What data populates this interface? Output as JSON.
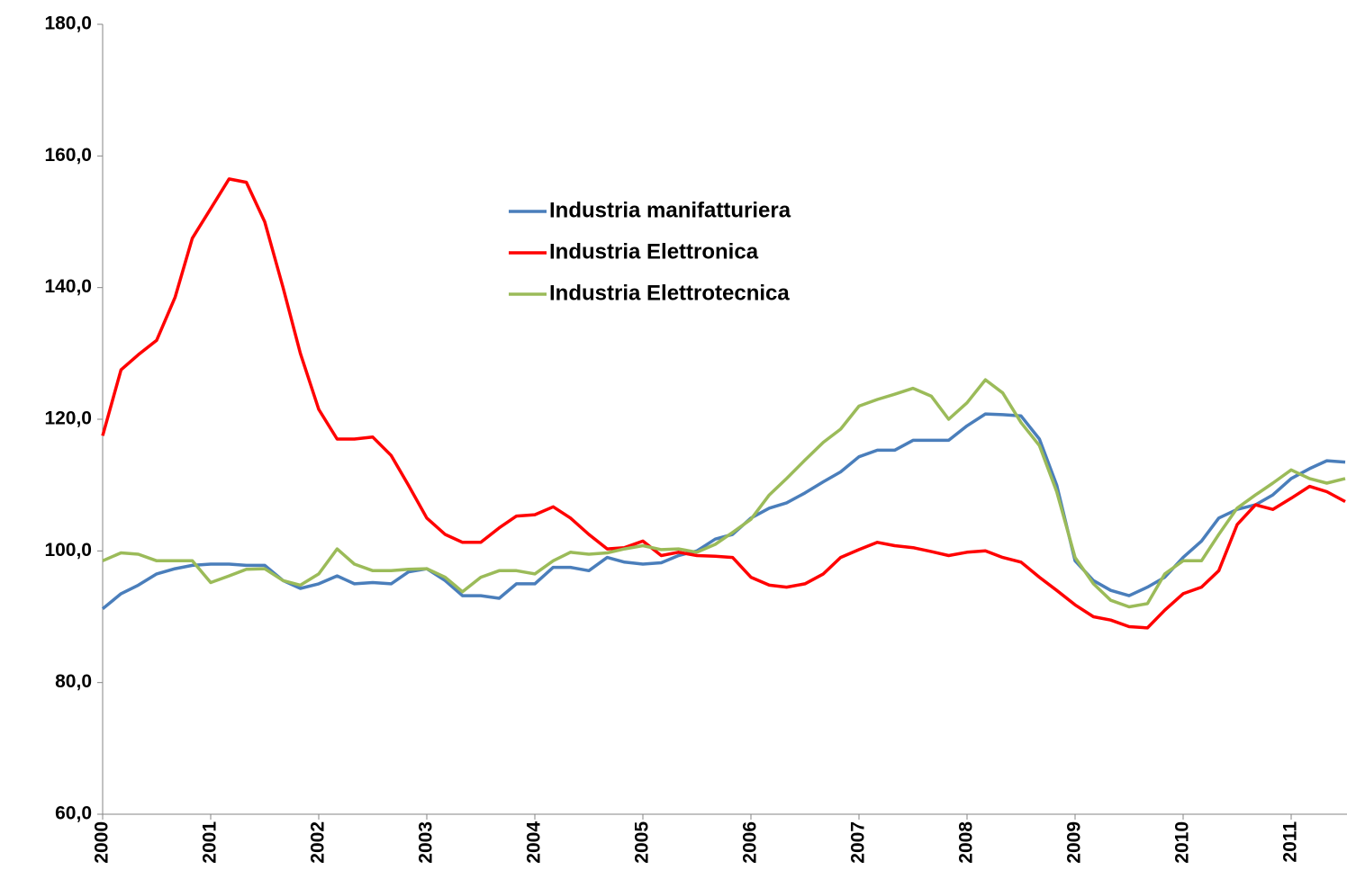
{
  "chart_data": {
    "type": "line",
    "x": [
      2000,
      2000.17,
      2000.33,
      2000.5,
      2000.67,
      2000.83,
      2001,
      2001.17,
      2001.33,
      2001.5,
      2001.67,
      2001.83,
      2002,
      2002.17,
      2002.33,
      2002.5,
      2002.67,
      2002.83,
      2003,
      2003.17,
      2003.33,
      2003.5,
      2003.67,
      2003.83,
      2004,
      2004.17,
      2004.33,
      2004.5,
      2004.67,
      2004.83,
      2005,
      2005.17,
      2005.33,
      2005.5,
      2005.67,
      2005.83,
      2006,
      2006.17,
      2006.33,
      2006.5,
      2006.67,
      2006.83,
      2007,
      2007.17,
      2007.33,
      2007.5,
      2007.67,
      2007.83,
      2008,
      2008.17,
      2008.33,
      2008.5,
      2008.67,
      2008.83,
      2009,
      2009.17,
      2009.33,
      2009.5,
      2009.67,
      2009.83,
      2010,
      2010.17,
      2010.33,
      2010.5,
      2010.67,
      2010.83,
      2011,
      2011.17,
      2011.33,
      2011.5
    ],
    "series": [
      {
        "name": "Industria manifatturiera",
        "color": "#4a7ebb",
        "values": [
          91.2,
          93.5,
          94.8,
          96.5,
          97.3,
          97.8,
          98.0,
          98.0,
          97.8,
          97.8,
          95.5,
          94.3,
          95.0,
          96.2,
          95.0,
          95.2,
          95.0,
          96.8,
          97.3,
          95.5,
          93.2,
          93.2,
          92.8,
          95.0,
          95.0,
          97.5,
          97.5,
          97.0,
          99.0,
          98.3,
          98.0,
          98.2,
          99.3,
          100.0,
          101.8,
          102.5,
          105.0,
          106.5,
          107.3,
          108.8,
          110.5,
          112.0,
          114.3,
          115.3,
          115.3,
          116.8,
          116.8,
          116.8,
          119.0,
          120.8,
          120.7,
          120.5,
          117.0,
          110.0,
          98.5,
          95.5,
          94.0,
          93.2,
          94.5,
          96.0,
          99.0,
          101.5,
          105.0,
          106.3,
          107.0,
          108.5,
          111.0,
          112.5,
          113.7,
          113.5
        ]
      },
      {
        "name": "Industria Elettronica",
        "color": "#ff0000",
        "values": [
          117.5,
          127.5,
          129.8,
          132.0,
          138.5,
          147.5,
          152.0,
          156.5,
          156.0,
          150.0,
          140.0,
          130.0,
          121.5,
          117.0,
          117.0,
          117.3,
          114.5,
          110.0,
          105.0,
          102.5,
          101.3,
          101.3,
          103.5,
          105.3,
          105.5,
          106.7,
          105.0,
          102.5,
          100.3,
          100.5,
          101.5,
          99.3,
          99.8,
          99.3,
          99.2,
          99.0,
          96.0,
          94.8,
          94.5,
          95.0,
          96.5,
          99.0,
          100.2,
          101.3,
          100.8,
          100.5,
          99.9,
          99.3,
          99.8,
          100.0,
          99.0,
          98.3,
          96.0,
          94.0,
          91.8,
          90.0,
          89.5,
          88.5,
          88.3,
          91.0,
          93.5,
          94.5,
          97.0,
          104.0,
          107.0,
          106.3,
          108.0,
          109.8,
          109.0,
          107.5
        ]
      },
      {
        "name": "Industria Elettrotecnica",
        "color": "#9bbb59",
        "values": [
          98.5,
          99.7,
          99.5,
          98.5,
          98.5,
          98.5,
          95.2,
          96.2,
          97.2,
          97.3,
          95.5,
          94.8,
          96.5,
          100.3,
          98.0,
          97.0,
          97.0,
          97.2,
          97.3,
          96.0,
          93.8,
          96.0,
          97.0,
          97.0,
          96.5,
          98.5,
          99.8,
          99.5,
          99.7,
          100.3,
          100.8,
          100.2,
          100.3,
          99.8,
          101.0,
          102.8,
          104.8,
          108.5,
          111.0,
          113.8,
          116.5,
          118.5,
          122.0,
          123.0,
          123.8,
          124.7,
          123.5,
          120.0,
          122.5,
          126.0,
          124.0,
          119.5,
          116.0,
          109.0,
          99.0,
          95.0,
          92.5,
          91.5,
          92.0,
          96.5,
          98.5,
          98.5,
          102.5,
          106.5,
          108.5,
          110.3,
          112.3,
          111.0,
          110.3,
          111.0
        ]
      }
    ],
    "xlim": [
      2000,
      2011.5
    ],
    "xticks": [
      2000,
      2001,
      2002,
      2003,
      2004,
      2005,
      2006,
      2007,
      2008,
      2009,
      2010,
      2011
    ],
    "ylim": [
      60,
      180
    ],
    "yticks": [
      {
        "value": 60,
        "label": "60,0"
      },
      {
        "value": 80,
        "label": "80,0"
      },
      {
        "value": 100,
        "label": "100,0"
      },
      {
        "value": 120,
        "label": "120,0"
      },
      {
        "value": 140,
        "label": "140,0"
      },
      {
        "value": 160,
        "label": "160,0"
      },
      {
        "value": 180,
        "label": "180,0"
      }
    ],
    "grid": false,
    "legend": "top"
  }
}
